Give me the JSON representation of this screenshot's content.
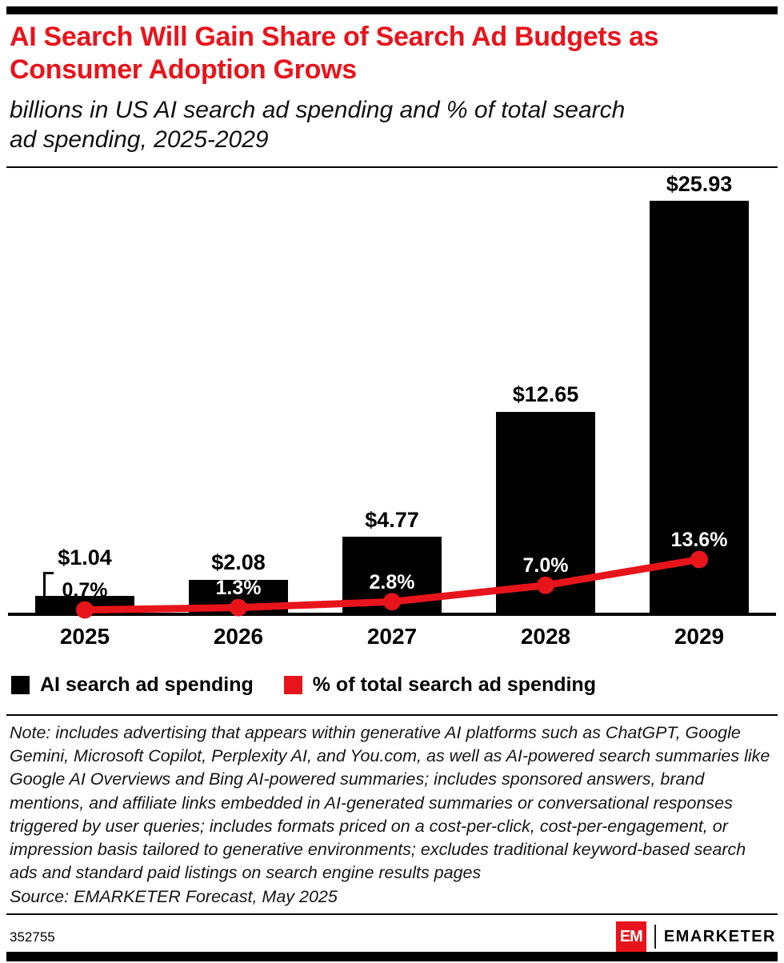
{
  "colors": {
    "accent_red": "#e8141b",
    "bar_black": "#000000"
  },
  "header": {
    "title": "AI Search Will Gain Share of Search Ad Budgets as Consumer Adoption Grows",
    "subtitle": "billions in US AI search ad spending and % of total search ad spending, 2025-2029"
  },
  "chart_data": {
    "type": "bar",
    "categories": [
      "2025",
      "2026",
      "2027",
      "2028",
      "2029"
    ],
    "series": [
      {
        "name": "AI search ad spending",
        "type": "bar",
        "color": "#000000",
        "values": [
          1.04,
          2.08,
          4.77,
          12.65,
          25.93
        ],
        "labels": [
          "$1.04",
          "$2.08",
          "$4.77",
          "$12.65",
          "$25.93"
        ],
        "unit": "billions USD"
      },
      {
        "name": "% of total search ad spending",
        "type": "line",
        "color": "#e8141b",
        "values": [
          0.7,
          1.3,
          2.8,
          7.0,
          13.6
        ],
        "labels": [
          "0.7%",
          "1.3%",
          "2.8%",
          "7.0%",
          "13.6%"
        ]
      }
    ],
    "title": "AI Search Will Gain Share of Search Ad Budgets as Consumer Adoption Grows",
    "xlabel": "",
    "ylabel": "",
    "ylim": [
      0,
      26
    ],
    "grid": false,
    "legend_position": "bottom"
  },
  "note": "Note: includes advertising that appears within generative AI platforms such as ChatGPT, Google Gemini, Microsoft Copilot, Perplexity AI, and You.com, as well as AI-powered search summaries like Google AI Overviews and Bing AI-powered summaries; includes sponsored answers, brand mentions, and affiliate links embedded in AI-generated summaries or conversational responses triggered by user queries; includes formats priced on a cost-per-click, cost-per-engagement, or impression basis tailored to generative environments; excludes traditional keyword-based search ads and standard paid listings on search engine results pages",
  "source": "Source: EMARKETER Forecast, May 2025",
  "footer": {
    "chart_id": "352755",
    "logo_text": "EM",
    "brand": "EMARKETER"
  }
}
